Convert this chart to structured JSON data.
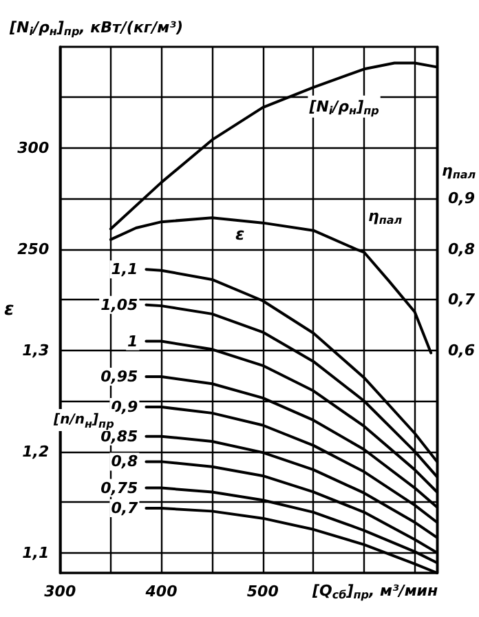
{
  "chart_data": {
    "type": "line",
    "xlabel": "[Q$_{сб}$]$_{пр}$, м³/мин",
    "ylabel": "ε",
    "y2label": "η$_{пал}$",
    "y3label": "[N$_{i}$/ρ$_{н}$]$_{пр}$, кВт/(кг/м³)",
    "xlim": [
      300,
      672
    ],
    "xticks": [
      300,
      {
        "value": 350,
        "label": null
      },
      400,
      {
        "value": 450,
        "label": null
      },
      500,
      {
        "value": 550,
        "label": null
      },
      {
        "value": 600,
        "label": null
      },
      {
        "value": 650,
        "label": null
      }
    ],
    "ylim": [
      1.08,
      1.6
    ],
    "yticks": [
      {
        "value": 1.1,
        "label": "1,1"
      },
      {
        "value": 1.15,
        "label": null
      },
      {
        "value": 1.2,
        "label": "1,2"
      },
      {
        "value": 1.25,
        "label": null
      },
      {
        "value": 1.3,
        "label": "1,3"
      }
    ],
    "y2lim": [
      0.16,
      1.2
    ],
    "y2ticks": [
      {
        "value": 0.6,
        "label": "0,6"
      },
      {
        "value": 0.7,
        "label": "0,7"
      },
      {
        "value": 0.8,
        "label": "0,8"
      },
      {
        "value": 0.9,
        "label": "0,9"
      }
    ],
    "y3lim": [
      90,
      350
    ],
    "y3ticks": [
      {
        "value": 225,
        "label": null
      },
      250,
      {
        "value": 275,
        "label": null
      },
      300,
      {
        "value": 325,
        "label": null
      }
    ],
    "grid": true,
    "legend": false,
    "marker": "none",
    "line_style": "solid",
    "annotations": [
      "ε",
      "[n/n$_{н}$]$_{пр}$"
    ],
    "series": [
      {
        "name": "[N$_{i}$/ρ$_{н}$]$_{пр}$",
        "color": "#000000",
        "axis": "y3",
        "x": [
          350,
          400,
          450,
          500,
          550,
          600,
          630,
          650,
          672
        ],
        "values": [
          260,
          283,
          304,
          320,
          330,
          339,
          342,
          342,
          340
        ]
      },
      {
        "name": "η$_{пал}$",
        "color": "#000000",
        "axis": "y2",
        "x": [
          350,
          375,
          400,
          450,
          500,
          550,
          592,
          600,
          625,
          650,
          666
        ],
        "values": [
          0.819,
          0.842,
          0.854,
          0.862,
          0.852,
          0.837,
          0.8,
          0.794,
          0.736,
          0.676,
          0.595
        ]
      },
      {
        "name": "1,1",
        "color": "#000000",
        "x": [
          385,
          400,
          450,
          500,
          550,
          600,
          650,
          672
        ],
        "values": [
          1.38,
          1.379,
          1.37,
          1.349,
          1.317,
          1.273,
          1.218,
          1.19
        ]
      },
      {
        "name": "1,05",
        "color": "#000000",
        "x": [
          385,
          400,
          450,
          500,
          550,
          600,
          650,
          672
        ],
        "values": [
          1.345,
          1.344,
          1.336,
          1.318,
          1.289,
          1.25,
          1.2,
          1.175
        ]
      },
      {
        "name": "1",
        "color": "#000000",
        "x": [
          385,
          400,
          450,
          500,
          550,
          600,
          650,
          672
        ],
        "values": [
          1.309,
          1.309,
          1.301,
          1.285,
          1.26,
          1.225,
          1.182,
          1.16
        ]
      },
      {
        "name": "0,95",
        "color": "#000000",
        "x": [
          385,
          400,
          450,
          500,
          550,
          600,
          650,
          672
        ],
        "values": [
          1.274,
          1.274,
          1.267,
          1.253,
          1.231,
          1.202,
          1.164,
          1.145
        ]
      },
      {
        "name": "0,9",
        "color": "#000000",
        "x": [
          385,
          400,
          450,
          500,
          550,
          600,
          650,
          672
        ],
        "values": [
          1.244,
          1.244,
          1.238,
          1.226,
          1.206,
          1.18,
          1.147,
          1.13
        ]
      },
      {
        "name": "0,85",
        "color": "#000000",
        "x": [
          385,
          400,
          450,
          500,
          550,
          600,
          650,
          672
        ],
        "values": [
          1.215,
          1.215,
          1.21,
          1.199,
          1.182,
          1.159,
          1.13,
          1.115
        ]
      },
      {
        "name": "0,8",
        "color": "#000000",
        "x": [
          385,
          400,
          450,
          500,
          550,
          600,
          650,
          672
        ],
        "values": [
          1.19,
          1.19,
          1.185,
          1.176,
          1.16,
          1.14,
          1.113,
          1.1
        ]
      },
      {
        "name": "0,75",
        "color": "#000000",
        "x": [
          385,
          400,
          450,
          500,
          550,
          600,
          650,
          672
        ],
        "values": [
          1.164,
          1.164,
          1.16,
          1.152,
          1.14,
          1.122,
          1.101,
          1.09
        ]
      },
      {
        "name": "0,7",
        "color": "#000000",
        "x": [
          385,
          400,
          450,
          500,
          550,
          600,
          650,
          672
        ],
        "values": [
          1.144,
          1.144,
          1.141,
          1.134,
          1.123,
          1.108,
          1.089,
          1.08
        ]
      }
    ]
  }
}
